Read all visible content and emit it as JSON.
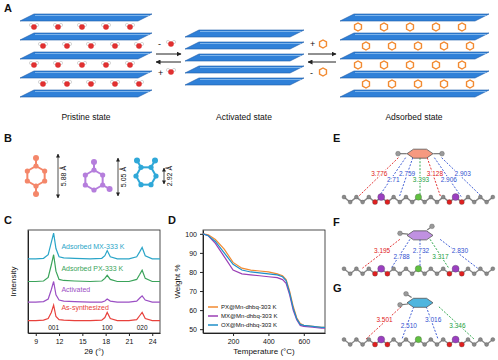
{
  "panel_labels": [
    "A",
    "B",
    "C",
    "D",
    "E",
    "F",
    "G"
  ],
  "schematic": {
    "states": [
      "Pristine state",
      "Activated state",
      "Adsorbed state"
    ],
    "arrow_signs": [
      "-",
      "+",
      "+",
      "-"
    ]
  },
  "molecules": {
    "dimensions": [
      "5.88 Å",
      "5.05 Å",
      "2.92 Å"
    ],
    "colors": [
      "#f4876a",
      "#b57edc",
      "#2fa8d8"
    ]
  },
  "chart_data": [
    {
      "type": "line",
      "x_label": "2θ (°)",
      "y_label": "Intensity",
      "xlim": [
        8,
        25
      ],
      "xticks": [
        9,
        12,
        15,
        18,
        21,
        24
      ],
      "ylim": [
        0,
        100
      ],
      "tick_labels": "x",
      "x": [
        8,
        9,
        10,
        10.6,
        11.0,
        11.3,
        11.6,
        12,
        12.6,
        14,
        16,
        17.5,
        17.9,
        18.2,
        18.6,
        19.5,
        21,
        22,
        22.4,
        22.7,
        23.1,
        24,
        25
      ],
      "series": [
        {
          "name": "As-synthesized",
          "color": "#e8413c",
          "values": [
            12,
            12,
            12.5,
            14,
            20,
            27,
            16,
            13,
            12.5,
            12,
            12,
            12.5,
            15,
            20,
            14,
            12,
            12,
            13,
            17,
            20,
            14,
            12,
            12
          ]
        },
        {
          "name": "Activated",
          "color": "#9b4fc4",
          "values": [
            30,
            30,
            30.5,
            33,
            42,
            50,
            37,
            32,
            31,
            30.5,
            30,
            30,
            31,
            33,
            31,
            30,
            30,
            31,
            34,
            36,
            32,
            30,
            30
          ]
        },
        {
          "name": "Adsorbed PX-333 K",
          "color": "#3aa35a",
          "values": [
            50,
            50,
            50.5,
            54,
            66,
            76,
            60,
            52,
            51,
            50.5,
            50,
            50.5,
            53,
            56,
            52,
            50,
            50,
            52,
            57,
            61,
            53,
            50,
            50
          ]
        },
        {
          "name": "Adsorbed MX-333 K",
          "color": "#2aa5c8",
          "values": [
            72,
            72,
            72.5,
            76,
            88,
            97,
            82,
            74,
            73,
            72.5,
            72,
            72.5,
            75,
            80,
            74,
            72,
            72,
            74,
            79,
            83,
            75,
            72,
            72
          ]
        }
      ],
      "annotations": [
        {
          "text": "001",
          "x": 11.3
        },
        {
          "text": "100",
          "x": 18.2
        },
        {
          "text": "020",
          "x": 22.7
        }
      ]
    },
    {
      "type": "line",
      "x_label": "Temperature (°C)",
      "y_label": "Weight %",
      "xlim": [
        30,
        720
      ],
      "xticks": [
        200,
        400,
        600
      ],
      "ylim": [
        48,
        102
      ],
      "yticks": [
        50,
        60,
        70,
        80,
        90,
        100
      ],
      "legend": "lower left",
      "x": [
        30,
        60,
        100,
        150,
        200,
        250,
        300,
        350,
        400,
        450,
        480,
        500,
        520,
        540,
        560,
        580,
        600,
        650,
        700,
        720
      ],
      "series": [
        {
          "name": "PX@Mn-dhbq-303 K",
          "color": "#f28a30",
          "values": [
            100,
            99.5,
            97,
            92,
            85,
            82,
            81,
            80.5,
            80,
            79,
            78,
            76,
            70,
            62,
            56,
            53,
            52,
            51.5,
            51,
            51
          ]
        },
        {
          "name": "MX@Mn-dhbq-303 K",
          "color": "#9b3fb5",
          "values": [
            100,
            99,
            95,
            88,
            81,
            79,
            78.5,
            78,
            77.5,
            77,
            76,
            74,
            68,
            60,
            55,
            52,
            51.5,
            51,
            50.5,
            50.5
          ]
        },
        {
          "name": "OX@Mn-dhbq-303 K",
          "color": "#1f8fc8",
          "values": [
            100,
            99,
            96,
            90,
            84,
            81,
            80,
            79.5,
            79,
            78.5,
            77.5,
            75.5,
            69,
            61,
            55.5,
            52.5,
            52,
            51.5,
            51,
            51
          ]
        }
      ]
    }
  ],
  "structures": [
    {
      "color": "#f4876a",
      "distances": [
        {
          "text": "3.776",
          "color": "#e02020"
        },
        {
          "text": "2.71",
          "color": "#3050d0"
        },
        {
          "text": "2.759",
          "color": "#3050d0"
        },
        {
          "text": "3.393",
          "color": "#20a040"
        },
        {
          "text": "3.128",
          "color": "#e02020"
        },
        {
          "text": "2.906",
          "color": "#3050d0"
        },
        {
          "text": "2.903",
          "color": "#3050d0"
        }
      ]
    },
    {
      "color": "#b57edc",
      "distances": [
        {
          "text": "3.195",
          "color": "#e02020"
        },
        {
          "text": "2.788",
          "color": "#3050d0"
        },
        {
          "text": "2.732",
          "color": "#3050d0"
        },
        {
          "text": "3.317",
          "color": "#20a040"
        },
        {
          "text": "2.830",
          "color": "#3050d0"
        }
      ]
    },
    {
      "color": "#2fa8d8",
      "distances": [
        {
          "text": "3.501",
          "color": "#e02020"
        },
        {
          "text": "2.510",
          "color": "#3050d0"
        },
        {
          "text": "3.016",
          "color": "#3050d0"
        },
        {
          "text": "3.346",
          "color": "#20a040"
        }
      ]
    }
  ]
}
